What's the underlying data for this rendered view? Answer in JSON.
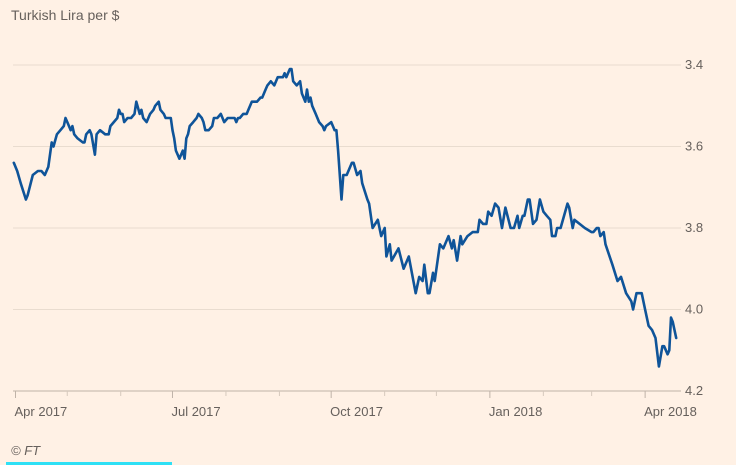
{
  "chart_data": {
    "type": "line",
    "title": "Turkish Lira per $",
    "xlabel": "",
    "ylabel": "",
    "x_unit": "days since 2017-04-01",
    "y_inverted": true,
    "ylim": [
      3.4,
      4.2
    ],
    "yticks": [
      "3.4",
      "3.6",
      "3.8",
      "4.0",
      "4.2"
    ],
    "ytick_values": [
      3.4,
      3.6,
      3.8,
      4.0,
      4.2
    ],
    "xticks": [
      {
        "label": "Apr 2017",
        "x": 0
      },
      {
        "label": "Jul 2017",
        "x": 91
      },
      {
        "label": "Oct 2017",
        "x": 183
      },
      {
        "label": "Jan 2018",
        "x": 275
      },
      {
        "label": "Apr 2018",
        "x": 365
      }
    ],
    "minor_xticks": [
      30,
      61,
      122,
      153,
      214,
      244,
      306,
      334
    ],
    "grid": true,
    "line_color": "#0f5499",
    "series": [
      {
        "name": "Turkish Lira per $",
        "x": [
          -1,
          1,
          3,
          6,
          7,
          10,
          13,
          15,
          17,
          19,
          21,
          22,
          24,
          26,
          28,
          29,
          30,
          32,
          33,
          34,
          36,
          39,
          40,
          41,
          43,
          44,
          46,
          47,
          49,
          52,
          54,
          55,
          57,
          59,
          60,
          61,
          62,
          63,
          65,
          67,
          69,
          70,
          72,
          73,
          74,
          76,
          78,
          80,
          81,
          83,
          84,
          86,
          87,
          90,
          91,
          92,
          93,
          94,
          95,
          97,
          98,
          99,
          100,
          101,
          103,
          105,
          106,
          108,
          109,
          110,
          112,
          114,
          115,
          117,
          119,
          121,
          123,
          124,
          126,
          127,
          128,
          129,
          130,
          132,
          134,
          135,
          137,
          139,
          140,
          142,
          143,
          145,
          146,
          148,
          150,
          152,
          153,
          155,
          156,
          157,
          159,
          160,
          161,
          163,
          165,
          166,
          168,
          169,
          170,
          171,
          172,
          174,
          176,
          178,
          179,
          180,
          183,
          185,
          186,
          187,
          189,
          190,
          192,
          195,
          196,
          198,
          200,
          201,
          204,
          205,
          207,
          210,
          212,
          214,
          215,
          217,
          218,
          222,
          225,
          228,
          232,
          234,
          236,
          237,
          239,
          240,
          242,
          243,
          246,
          248,
          251,
          253,
          254,
          256,
          258,
          259,
          262,
          265,
          268,
          269,
          271,
          273,
          274,
          276,
          278,
          280,
          282,
          284,
          287,
          289,
          291,
          292,
          294,
          295,
          297,
          298,
          300,
          302,
          304,
          306,
          308,
          310,
          311,
          313,
          314,
          316,
          320,
          321,
          323,
          324,
          327,
          330,
          334,
          335,
          337,
          338,
          339,
          341,
          342,
          346,
          349,
          351,
          354,
          357,
          358,
          360,
          363,
          365,
          367,
          369,
          371,
          373,
          375,
          376,
          378,
          379,
          380,
          381,
          383
        ],
        "y": [
          3.64,
          3.66,
          3.69,
          3.73,
          3.72,
          3.67,
          3.66,
          3.66,
          3.67,
          3.65,
          3.59,
          3.6,
          3.57,
          3.56,
          3.55,
          3.53,
          3.54,
          3.56,
          3.55,
          3.57,
          3.58,
          3.59,
          3.59,
          3.57,
          3.56,
          3.57,
          3.62,
          3.57,
          3.56,
          3.57,
          3.57,
          3.55,
          3.54,
          3.53,
          3.51,
          3.52,
          3.52,
          3.54,
          3.53,
          3.53,
          3.52,
          3.49,
          3.52,
          3.51,
          3.53,
          3.54,
          3.52,
          3.51,
          3.5,
          3.49,
          3.51,
          3.52,
          3.53,
          3.53,
          3.56,
          3.58,
          3.61,
          3.62,
          3.63,
          3.61,
          3.63,
          3.58,
          3.57,
          3.55,
          3.54,
          3.53,
          3.52,
          3.53,
          3.54,
          3.56,
          3.56,
          3.55,
          3.53,
          3.53,
          3.52,
          3.54,
          3.53,
          3.53,
          3.53,
          3.53,
          3.54,
          3.53,
          3.53,
          3.52,
          3.52,
          3.51,
          3.49,
          3.49,
          3.49,
          3.48,
          3.48,
          3.46,
          3.45,
          3.44,
          3.45,
          3.43,
          3.43,
          3.43,
          3.42,
          3.43,
          3.41,
          3.41,
          3.44,
          3.45,
          3.44,
          3.47,
          3.49,
          3.46,
          3.49,
          3.48,
          3.5,
          3.52,
          3.54,
          3.55,
          3.56,
          3.55,
          3.54,
          3.56,
          3.56,
          3.61,
          3.73,
          3.67,
          3.67,
          3.64,
          3.64,
          3.67,
          3.66,
          3.69,
          3.73,
          3.74,
          3.8,
          3.78,
          3.82,
          3.8,
          3.87,
          3.84,
          3.88,
          3.85,
          3.9,
          3.87,
          3.96,
          3.92,
          3.93,
          3.89,
          3.96,
          3.96,
          3.91,
          3.93,
          3.84,
          3.85,
          3.82,
          3.85,
          3.83,
          3.88,
          3.82,
          3.84,
          3.82,
          3.81,
          3.81,
          3.78,
          3.79,
          3.79,
          3.76,
          3.77,
          3.74,
          3.75,
          3.8,
          3.75,
          3.8,
          3.8,
          3.77,
          3.8,
          3.77,
          3.77,
          3.73,
          3.73,
          3.79,
          3.78,
          3.73,
          3.76,
          3.77,
          3.78,
          3.82,
          3.82,
          3.8,
          3.8,
          3.74,
          3.75,
          3.8,
          3.78,
          3.79,
          3.8,
          3.81,
          3.81,
          3.8,
          3.8,
          3.82,
          3.81,
          3.84,
          3.89,
          3.93,
          3.92,
          3.96,
          3.98,
          4.0,
          3.96,
          3.96,
          4.0,
          4.04,
          4.05,
          4.07,
          4.14,
          4.09,
          4.09,
          4.11,
          4.1,
          4.02,
          4.03,
          4.07
        ]
      }
    ],
    "source": "© FT"
  }
}
